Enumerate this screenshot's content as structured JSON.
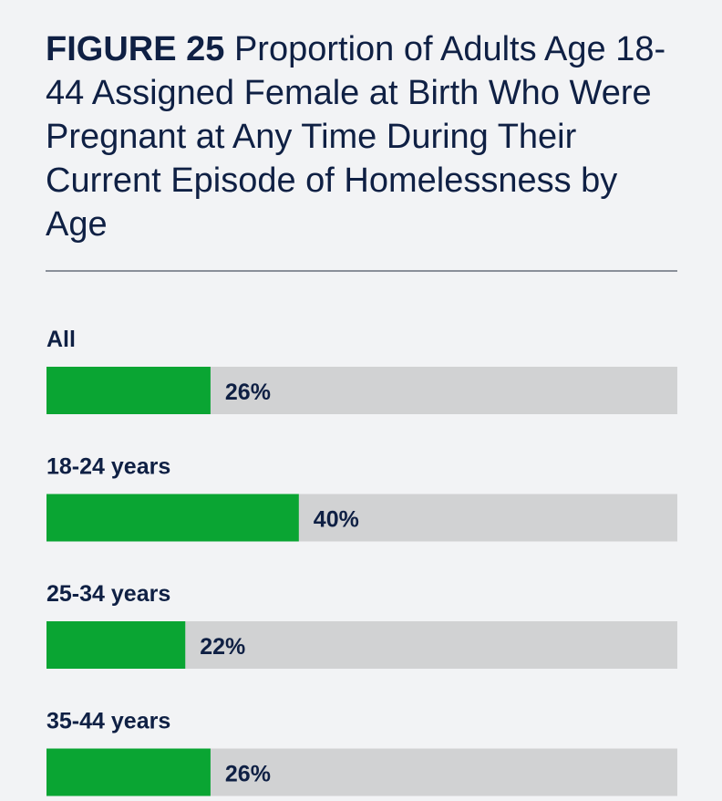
{
  "figure": {
    "number_label": "FIGURE 25",
    "title_text": "Proportion of Adults Age 18-44 Assigned Female at Birth Who Were Pregnant at Any Time During Their Current Episode of Homelessness by Age"
  },
  "colors": {
    "bar_fill": "#0aa533",
    "bar_track": "#d1d2d3",
    "text": "#0f2044",
    "background": "#f2f3f5"
  },
  "chart_data": {
    "type": "bar",
    "orientation": "horizontal",
    "categories": [
      "All",
      "18-24 years",
      "25-34 years",
      "35-44 years"
    ],
    "values": [
      26,
      40,
      22,
      26
    ],
    "value_labels": [
      "26%",
      "40%",
      "22%",
      "26%"
    ],
    "xlim": [
      0,
      100
    ],
    "unit": "%",
    "grid": false
  }
}
